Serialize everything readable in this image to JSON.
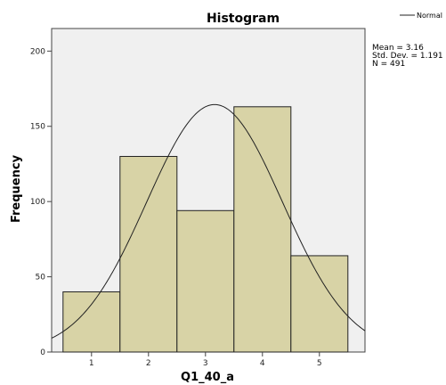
{
  "chart_data": {
    "type": "bar",
    "title": "Histogram",
    "xlabel": "Q1_40_a",
    "ylabel": "Frequency",
    "categories": [
      "1",
      "2",
      "3",
      "4",
      "5"
    ],
    "values": [
      40,
      130,
      94,
      163,
      64
    ],
    "xlim": [
      0.3,
      5.8
    ],
    "ylim": [
      0,
      215
    ],
    "x_ticks": [
      "1",
      "2",
      "3",
      "4",
      "5"
    ],
    "y_ticks": [
      0,
      50,
      100,
      150,
      200
    ],
    "legend": {
      "label": "Normal",
      "placement": "top-right"
    },
    "normal_curve": {
      "mean": 3.16,
      "std_dev": 1.191,
      "n": 491,
      "bin_width": 1
    },
    "stats": {
      "mean": "Mean = 3.16",
      "std_dev": "Std. Dev. = 1.191",
      "n": "N = 491"
    },
    "grid": false,
    "colors": {
      "plot_background": "#f0f0f0",
      "bar_fill": "#d8d3a6",
      "bar_stroke": "#222222",
      "curve": "#222222"
    }
  }
}
